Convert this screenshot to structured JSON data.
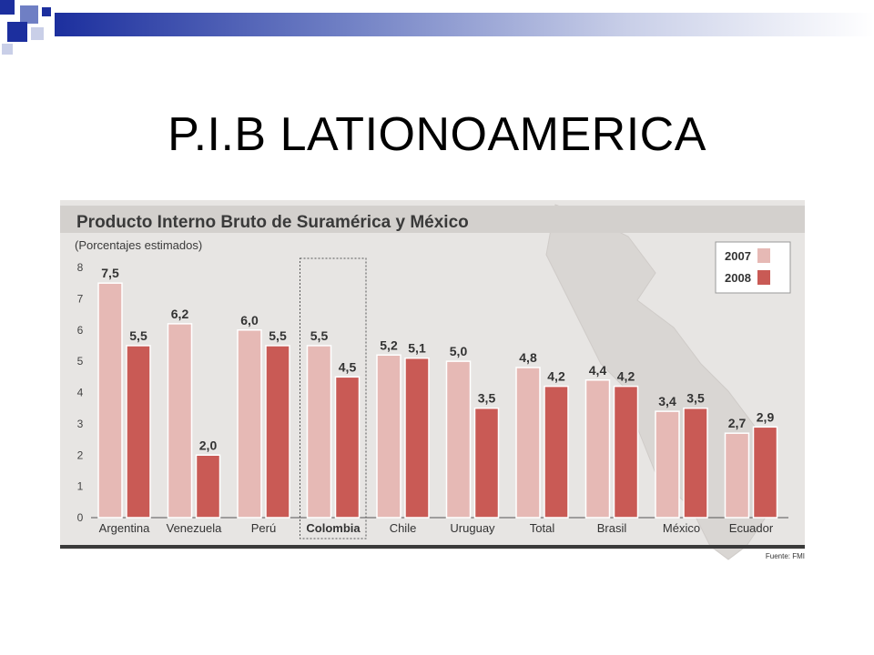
{
  "slide": {
    "title": "P.I.B LATIONOAMERICA"
  },
  "chart_data": {
    "type": "bar",
    "title": "Producto Interno Bruto de Suramérica y México",
    "subtitle": "(Porcentajes estimados)",
    "source": "Fuente: FMI",
    "categories": [
      "Argentina",
      "Venezuela",
      "Perú",
      "Colombia",
      "Chile",
      "Uruguay",
      "Total",
      "Brasil",
      "México",
      "Ecuador"
    ],
    "highlighted_category": "Colombia",
    "series": [
      {
        "name": "2007",
        "color": "#e6b9b5",
        "values": [
          7.5,
          6.2,
          6.0,
          5.5,
          5.2,
          5.0,
          4.8,
          4.4,
          3.4,
          2.7
        ]
      },
      {
        "name": "2008",
        "color": "#c95a55",
        "values": [
          5.5,
          2.0,
          5.5,
          4.5,
          5.1,
          3.5,
          4.2,
          4.2,
          3.5,
          2.9
        ]
      }
    ],
    "value_labels": [
      [
        "7,5",
        "6,2",
        "6,0",
        "5,5",
        "5,2",
        "5,0",
        "4,8",
        "4,4",
        "3,4",
        "2,7"
      ],
      [
        "5,5",
        "2,0",
        "5,5",
        "4,5",
        "5,1",
        "3,5",
        "4,2",
        "4,2",
        "3,5",
        "2,9"
      ]
    ],
    "yticks": [
      "0",
      "1",
      "2",
      "3",
      "4",
      "5",
      "6",
      "7",
      "8"
    ],
    "ylim": [
      0,
      8
    ],
    "grid": false,
    "legend_position": "top-right",
    "background": "#e7e5e3"
  }
}
